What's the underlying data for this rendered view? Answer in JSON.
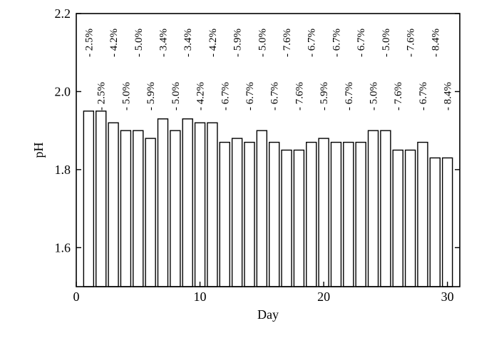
{
  "chart_data": {
    "type": "bar",
    "xlabel": "Day",
    "ylabel": "pH",
    "xlim": [
      0,
      31
    ],
    "ylim": [
      1.5,
      2.2
    ],
    "xticks": [
      0,
      10,
      20,
      30
    ],
    "yticks": [
      1.6,
      1.8,
      2.0,
      2.2
    ],
    "ytick_labels": [
      "1.6",
      "1.8",
      "2.0",
      "2.2"
    ],
    "grid": false,
    "x": [
      1,
      2,
      3,
      4,
      5,
      6,
      7,
      8,
      9,
      10,
      11,
      12,
      13,
      14,
      15,
      16,
      17,
      18,
      19,
      20,
      21,
      22,
      23,
      24,
      25,
      26,
      27,
      28,
      29,
      30
    ],
    "values": [
      1.95,
      1.95,
      1.92,
      1.9,
      1.9,
      1.88,
      1.93,
      1.9,
      1.93,
      1.92,
      1.92,
      1.87,
      1.88,
      1.87,
      1.9,
      1.87,
      1.85,
      1.85,
      1.87,
      1.88,
      1.87,
      1.87,
      1.87,
      1.9,
      1.9,
      1.85,
      1.85,
      1.87,
      1.83,
      1.83
    ],
    "labels": [
      "2.5%",
      "2.5%",
      "4.2%",
      "5.0%",
      "5.0%",
      "5.9%",
      "3.4%",
      "5.0%",
      "3.4%",
      "4.2%",
      "4.2%",
      "6.7%",
      "5.9%",
      "6.7%",
      "5.0%",
      "6.7%",
      "7.6%",
      "7.6%",
      "6.7%",
      "5.9%",
      "6.7%",
      "6.7%",
      "6.7%",
      "5.0%",
      "5.0%",
      "7.6%",
      "7.6%",
      "6.7%",
      "8.4%",
      "8.4%"
    ]
  }
}
